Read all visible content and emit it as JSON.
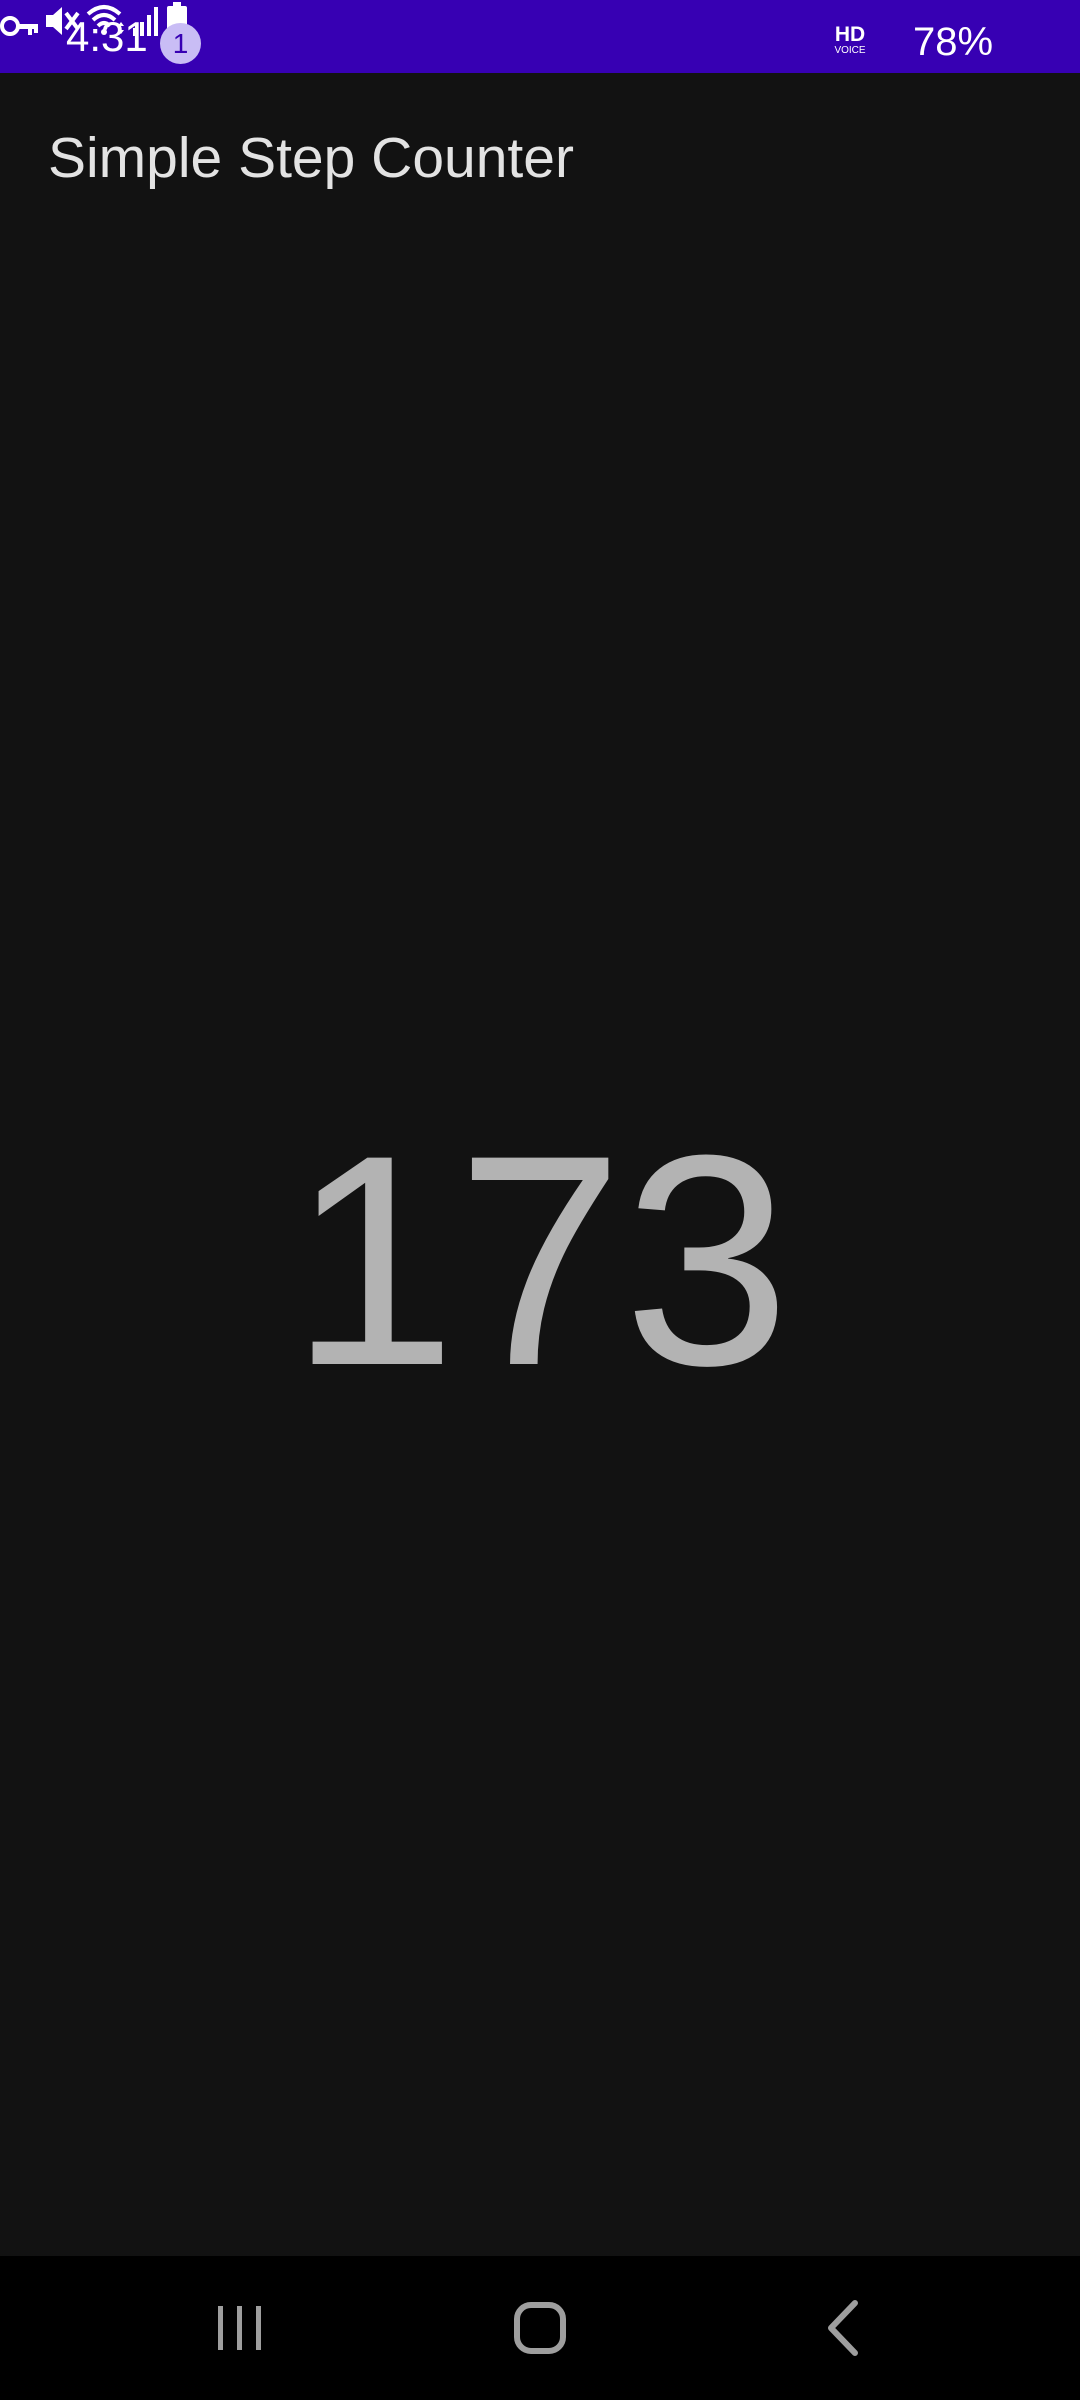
{
  "status_bar": {
    "time": "4:31",
    "notification_count": "1",
    "hd_label": "HD",
    "voice_label": "VOICE",
    "battery_percent": "78%",
    "icons": [
      "vpn-key-icon",
      "mute-icon",
      "wifi-icon",
      "hd-voice-icon",
      "signal-icon",
      "battery-icon"
    ],
    "background_color": "#3700b3"
  },
  "app": {
    "title": "Simple Step Counter",
    "step_count": "173",
    "background_color": "#121212",
    "count_color": "#b3b3b3"
  },
  "nav_bar": {
    "buttons": [
      "recents-icon",
      "home-icon",
      "back-icon"
    ]
  }
}
